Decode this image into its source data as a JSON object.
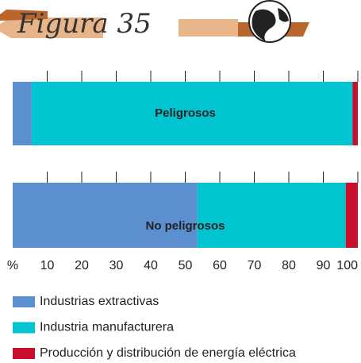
{
  "chart_data": {
    "type": "stacked-bar-horizontal",
    "title": "Figura 35",
    "x_label": "%",
    "categories": [
      "Peligrosos",
      "No peligrosos"
    ],
    "series": [
      {
        "name": "Industrias extractivas",
        "color": "#5b8fd0",
        "values": [
          5.5,
          53.5
        ]
      },
      {
        "name": "Industria manufacturera",
        "color": "#00c4cf",
        "values": [
          93,
          43
        ]
      },
      {
        "name": "Producción y distribución de energía eléctrica",
        "color": "#c8102e",
        "values": [
          1.5,
          3.5
        ]
      }
    ],
    "xlim": [
      0,
      100
    ],
    "xticks": [
      10,
      20,
      30,
      40,
      50,
      60,
      70,
      80,
      90,
      100
    ]
  }
}
